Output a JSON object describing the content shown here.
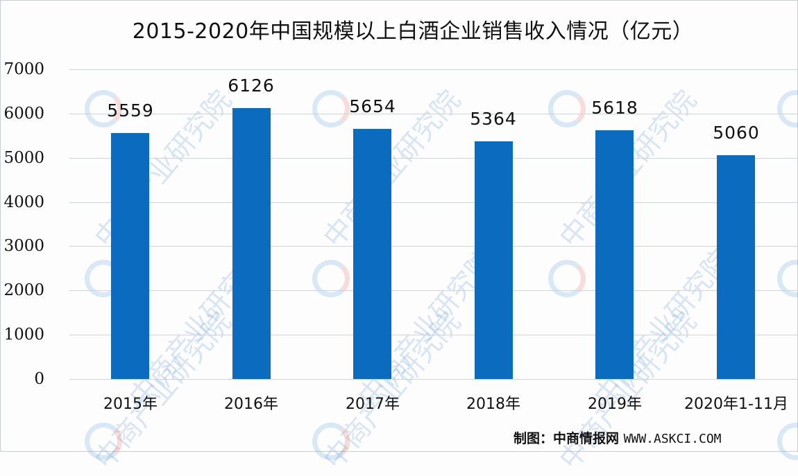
{
  "chart_data": {
    "type": "bar",
    "title": "2015-2020年中国规模以上白酒企业销售收入情况（亿元）",
    "categories": [
      "2015年",
      "2016年",
      "2017年",
      "2018年",
      "2019年",
      "2020年1-11月"
    ],
    "values": [
      5559,
      6126,
      5654,
      5364,
      5618,
      5060
    ],
    "data_labels": [
      "5559",
      "6126",
      "5654",
      "5364",
      "5618",
      "5060"
    ],
    "xlabel": "",
    "ylabel": "",
    "ylim": [
      0,
      7000
    ],
    "yticks": [
      "0",
      "1000",
      "2000",
      "3000",
      "4000",
      "5000",
      "6000",
      "7000"
    ],
    "grid": true,
    "legend": null,
    "bar_color": "#0a6bbf"
  },
  "source": {
    "label": "制图：中商情报网",
    "url": "WWW.ASKCI.COM"
  },
  "watermark": "中商产业研究院"
}
